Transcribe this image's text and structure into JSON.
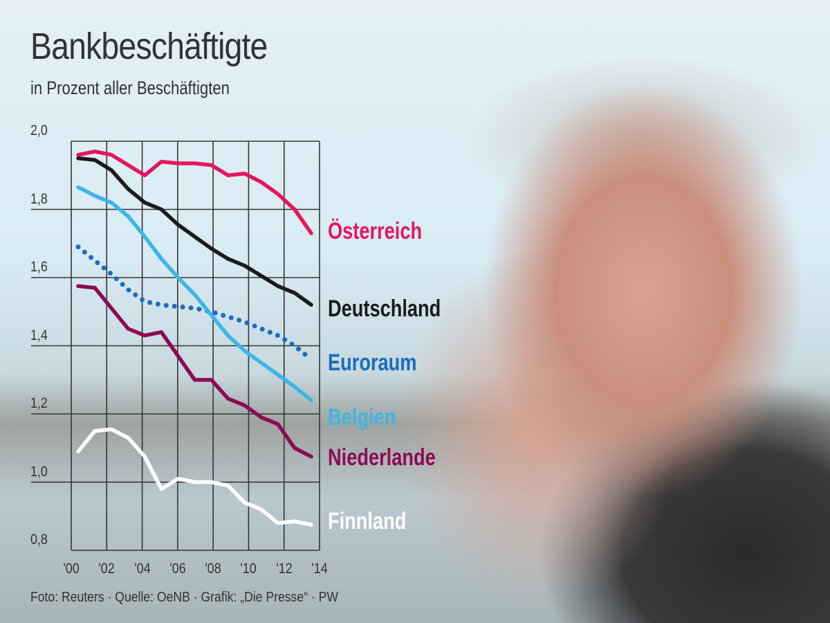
{
  "chart_data": {
    "type": "line",
    "title": "Bankbeschäftigte",
    "subtitle": "in Prozent aller Beschäftigten",
    "x": [
      2000,
      2001,
      2002,
      2003,
      2004,
      2005,
      2006,
      2007,
      2008,
      2009,
      2010,
      2011,
      2012,
      2013,
      2014
    ],
    "x_tick_labels": [
      "'00",
      "'02",
      "'04",
      "'06",
      "'08",
      "'10",
      "'12",
      "'14"
    ],
    "y_tick_labels": [
      "2,0",
      "1,8",
      "1,6",
      "1,4",
      "1,2",
      "1,0",
      "0,8"
    ],
    "ylim": [
      0.8,
      2.0
    ],
    "xlim": [
      2000,
      2014
    ],
    "grid": true,
    "legend": "right (labels at line ends)",
    "series": [
      {
        "name": "Österreich",
        "color": "#e3175c",
        "style": "solid",
        "values": [
          1.96,
          1.97,
          1.96,
          1.93,
          1.9,
          1.94,
          1.935,
          1.935,
          1.93,
          1.9,
          1.905,
          1.88,
          1.845,
          1.8,
          1.73
        ]
      },
      {
        "name": "Deutschland",
        "color": "#1b1b1b",
        "style": "solid",
        "values": [
          1.95,
          1.945,
          1.915,
          1.86,
          1.82,
          1.8,
          1.755,
          1.72,
          1.685,
          1.655,
          1.635,
          1.605,
          1.575,
          1.555,
          1.52
        ]
      },
      {
        "name": "Euroraum",
        "color": "#1a6cbf",
        "style": "dotted",
        "values": [
          1.69,
          1.65,
          1.61,
          1.565,
          1.53,
          1.52,
          1.515,
          1.51,
          1.5,
          1.485,
          1.47,
          1.45,
          1.43,
          1.4,
          1.36
        ]
      },
      {
        "name": "Belgien",
        "color": "#3cb6e8",
        "style": "solid",
        "values": [
          1.865,
          1.84,
          1.82,
          1.78,
          1.72,
          1.655,
          1.6,
          1.55,
          1.49,
          1.43,
          1.385,
          1.35,
          1.315,
          1.28,
          1.24
        ]
      },
      {
        "name": "Niederlande",
        "color": "#8c0b57",
        "style": "solid",
        "values": [
          1.575,
          1.57,
          1.51,
          1.45,
          1.43,
          1.44,
          1.37,
          1.3,
          1.3,
          1.245,
          1.225,
          1.19,
          1.17,
          1.1,
          1.075
        ]
      },
      {
        "name": "Finnland",
        "color": "#ffffff",
        "style": "solid",
        "values": [
          1.09,
          1.15,
          1.155,
          1.13,
          1.075,
          0.98,
          1.01,
          1.0,
          1.0,
          0.99,
          0.94,
          0.92,
          0.88,
          0.885,
          0.875
        ]
      }
    ]
  },
  "source": "Foto: Reuters · Quelle: OeNB · Grafik: „Die Presse“ · PW"
}
